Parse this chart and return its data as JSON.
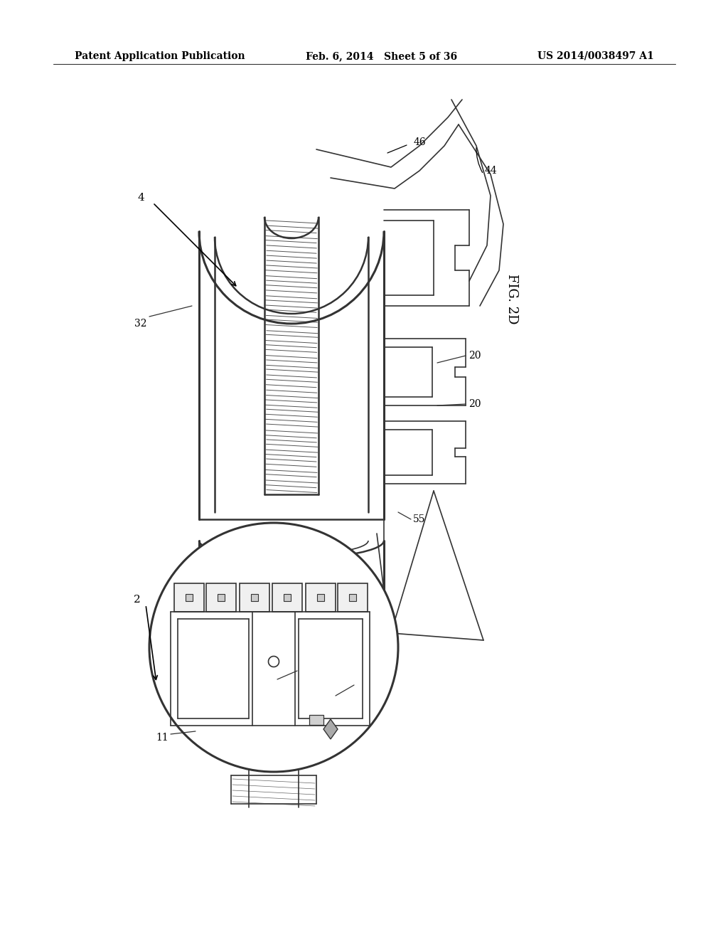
{
  "bg_color": "#ffffff",
  "header_left": "Patent Application Publication",
  "header_mid": "Feb. 6, 2014   Sheet 5 of 36",
  "header_right": "US 2014/0038497 A1",
  "fig_label": "FIG. 2D",
  "line_color": "#333333",
  "lw_main": 1.8,
  "lw_thin": 1.2,
  "lw_thick": 2.2
}
